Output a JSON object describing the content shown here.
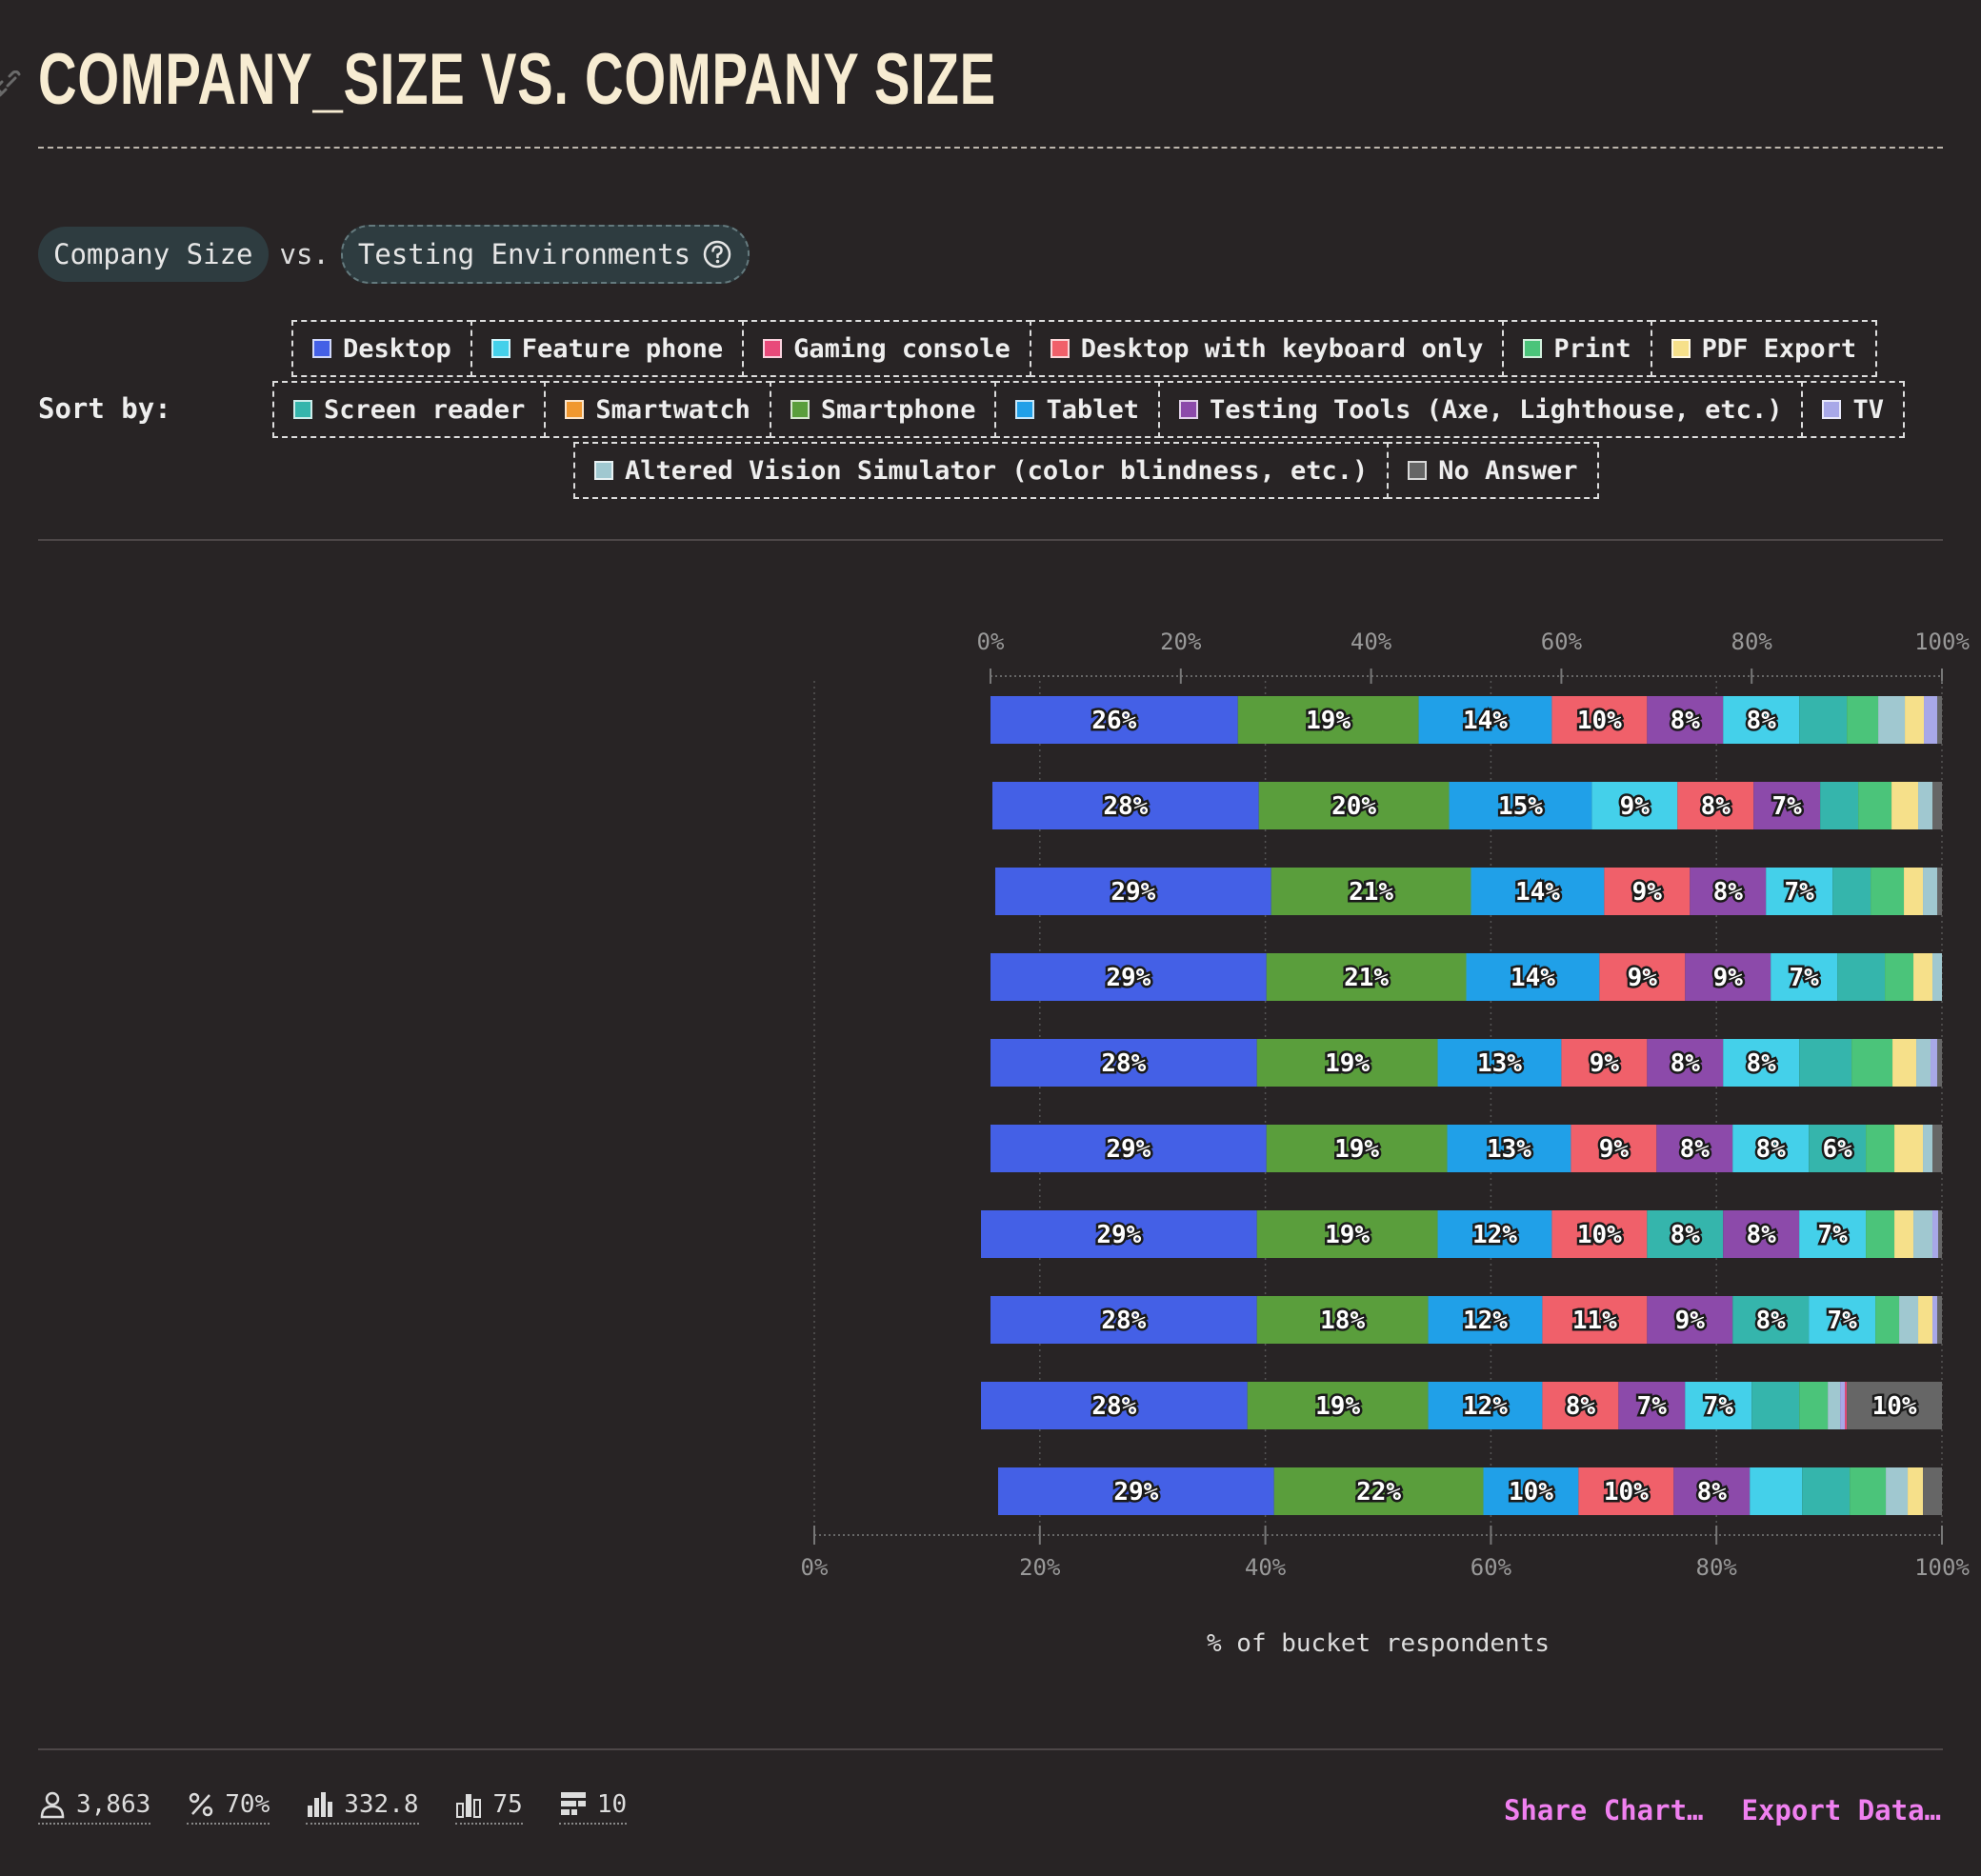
{
  "title": "COMPANY_SIZE VS. COMPANY SIZE",
  "selectors": {
    "left": "Company Size",
    "vs": "vs.",
    "right": "Testing Environments"
  },
  "sort_label": "Sort by:",
  "legend_rows": [
    [
      {
        "label": "Desktop",
        "color": "#4460e6"
      },
      {
        "label": "Feature phone",
        "color": "#44d0ea"
      },
      {
        "label": "Gaming console",
        "color": "#e84a7a"
      },
      {
        "label": "Desktop with keyboard only",
        "color": "#f0606a"
      },
      {
        "label": "Print",
        "color": "#4bc47a"
      },
      {
        "label": "PDF Export",
        "color": "#f6e08a"
      }
    ],
    [
      {
        "label": "Screen reader",
        "color": "#35b5ac"
      },
      {
        "label": "Smartwatch",
        "color": "#f09830"
      },
      {
        "label": "Smartphone",
        "color": "#5a9e3c"
      },
      {
        "label": "Tablet",
        "color": "#20a0e8"
      },
      {
        "label": "Testing Tools (Axe, Lighthouse, etc.)",
        "color": "#8c4aaa"
      },
      {
        "label": "TV",
        "color": "#a8a8e8"
      }
    ],
    [
      {
        "label": "Altered Vision Simulator (color blindness, etc.)",
        "color": "#a0c8d0"
      },
      {
        "label": "No Answer",
        "color": "#666666"
      }
    ]
  ],
  "footer": {
    "stats": [
      {
        "icon": "user-icon",
        "value": "3,863"
      },
      {
        "icon": "percent-icon",
        "value": "70%"
      },
      {
        "icon": "bar-chart-icon",
        "value": "332.8"
      },
      {
        "icon": "bar-chart-outline-icon",
        "value": "75"
      },
      {
        "icon": "buckets-icon",
        "value": "10"
      }
    ],
    "share": "Share Chart…",
    "export": "Export Data…"
  },
  "chart_data": {
    "type": "bar",
    "orientation": "horizontal",
    "stacked": true,
    "xlabel": "% of bucket respondents",
    "xlim": [
      0,
      100
    ],
    "ticks": [
      "0%",
      "20%",
      "40%",
      "60%",
      "80%",
      "100%"
    ],
    "rows": [
      {
        "segments": [
          {
            "series": "Desktop",
            "value": 26,
            "label": "26%"
          },
          {
            "series": "Smartphone",
            "value": 19,
            "label": "19%"
          },
          {
            "series": "Tablet",
            "value": 14,
            "label": "14%"
          },
          {
            "series": "Desktop with keyboard only",
            "value": 10,
            "label": "10%"
          },
          {
            "series": "Testing Tools (Axe, Lighthouse, etc.)",
            "value": 8,
            "label": "8%"
          },
          {
            "series": "Feature phone",
            "value": 8,
            "label": "8%"
          },
          {
            "series": "Screen reader",
            "value": 5,
            "label": ""
          },
          {
            "series": "Print",
            "value": 3.3,
            "label": ""
          },
          {
            "series": "Altered Vision Simulator (color blindness, etc.)",
            "value": 2.8,
            "label": ""
          },
          {
            "series": "PDF Export",
            "value": 2,
            "label": ""
          },
          {
            "series": "TV",
            "value": 1.4,
            "label": ""
          },
          {
            "series": "No Answer",
            "value": 0.5,
            "label": ""
          }
        ]
      },
      {
        "segments": [
          {
            "series": "Desktop",
            "value": 28,
            "label": "28%"
          },
          {
            "series": "Smartphone",
            "value": 20,
            "label": "20%"
          },
          {
            "series": "Tablet",
            "value": 15,
            "label": "15%"
          },
          {
            "series": "Feature phone",
            "value": 9,
            "label": "9%"
          },
          {
            "series": "Desktop with keyboard only",
            "value": 8,
            "label": "8%"
          },
          {
            "series": "Testing Tools (Axe, Lighthouse, etc.)",
            "value": 7,
            "label": "7%"
          },
          {
            "series": "Screen reader",
            "value": 4,
            "label": ""
          },
          {
            "series": "Print",
            "value": 3.5,
            "label": ""
          },
          {
            "series": "PDF Export",
            "value": 2.8,
            "label": ""
          },
          {
            "series": "Altered Vision Simulator (color blindness, etc.)",
            "value": 1.5,
            "label": ""
          },
          {
            "series": "No Answer",
            "value": 1,
            "label": ""
          }
        ]
      },
      {
        "segments": [
          {
            "series": "Desktop",
            "value": 29,
            "label": "29%"
          },
          {
            "series": "Smartphone",
            "value": 21,
            "label": "21%"
          },
          {
            "series": "Tablet",
            "value": 14,
            "label": "14%"
          },
          {
            "series": "Desktop with keyboard only",
            "value": 9,
            "label": "9%"
          },
          {
            "series": "Testing Tools (Axe, Lighthouse, etc.)",
            "value": 8,
            "label": "8%"
          },
          {
            "series": "Feature phone",
            "value": 7,
            "label": "7%"
          },
          {
            "series": "Screen reader",
            "value": 4,
            "label": ""
          },
          {
            "series": "Print",
            "value": 3.5,
            "label": ""
          },
          {
            "series": "PDF Export",
            "value": 2,
            "label": ""
          },
          {
            "series": "Altered Vision Simulator (color blindness, etc.)",
            "value": 1.5,
            "label": ""
          },
          {
            "series": "No Answer",
            "value": 0.5,
            "label": ""
          }
        ]
      },
      {
        "segments": [
          {
            "series": "Desktop",
            "value": 29,
            "label": "29%"
          },
          {
            "series": "Smartphone",
            "value": 21,
            "label": "21%"
          },
          {
            "series": "Tablet",
            "value": 14,
            "label": "14%"
          },
          {
            "series": "Desktop with keyboard only",
            "value": 9,
            "label": "9%"
          },
          {
            "series": "Testing Tools (Axe, Lighthouse, etc.)",
            "value": 9,
            "label": "9%"
          },
          {
            "series": "Feature phone",
            "value": 7,
            "label": "7%"
          },
          {
            "series": "Screen reader",
            "value": 5,
            "label": ""
          },
          {
            "series": "Print",
            "value": 3,
            "label": ""
          },
          {
            "series": "PDF Export",
            "value": 2,
            "label": ""
          },
          {
            "series": "Altered Vision Simulator (color blindness, etc.)",
            "value": 1,
            "label": ""
          }
        ]
      },
      {
        "segments": [
          {
            "series": "Desktop",
            "value": 28,
            "label": "28%"
          },
          {
            "series": "Smartphone",
            "value": 19,
            "label": "19%"
          },
          {
            "series": "Tablet",
            "value": 13,
            "label": "13%"
          },
          {
            "series": "Desktop with keyboard only",
            "value": 9,
            "label": "9%"
          },
          {
            "series": "Testing Tools (Axe, Lighthouse, etc.)",
            "value": 8,
            "label": "8%"
          },
          {
            "series": "Feature phone",
            "value": 8,
            "label": "8%"
          },
          {
            "series": "Screen reader",
            "value": 5.5,
            "label": ""
          },
          {
            "series": "Print",
            "value": 4.3,
            "label": ""
          },
          {
            "series": "PDF Export",
            "value": 2.5,
            "label": ""
          },
          {
            "series": "Altered Vision Simulator (color blindness, etc.)",
            "value": 1.5,
            "label": ""
          },
          {
            "series": "TV",
            "value": 0.7,
            "label": ""
          },
          {
            "series": "No Answer",
            "value": 0.5,
            "label": ""
          }
        ]
      },
      {
        "segments": [
          {
            "series": "Desktop",
            "value": 29,
            "label": "29%"
          },
          {
            "series": "Smartphone",
            "value": 19,
            "label": "19%"
          },
          {
            "series": "Tablet",
            "value": 13,
            "label": "13%"
          },
          {
            "series": "Desktop with keyboard only",
            "value": 9,
            "label": "9%"
          },
          {
            "series": "Testing Tools (Axe, Lighthouse, etc.)",
            "value": 8,
            "label": "8%"
          },
          {
            "series": "Feature phone",
            "value": 8,
            "label": "8%"
          },
          {
            "series": "Screen reader",
            "value": 6,
            "label": "6%"
          },
          {
            "series": "Print",
            "value": 3,
            "label": ""
          },
          {
            "series": "PDF Export",
            "value": 3,
            "label": ""
          },
          {
            "series": "Altered Vision Simulator (color blindness, etc.)",
            "value": 1,
            "label": ""
          },
          {
            "series": "No Answer",
            "value": 1,
            "label": ""
          }
        ]
      },
      {
        "segments": [
          {
            "series": "Desktop",
            "value": 29,
            "label": "29%"
          },
          {
            "series": "Smartphone",
            "value": 19,
            "label": "19%"
          },
          {
            "series": "Tablet",
            "value": 12,
            "label": "12%"
          },
          {
            "series": "Desktop with keyboard only",
            "value": 10,
            "label": "10%"
          },
          {
            "series": "Screen reader",
            "value": 8,
            "label": "8%"
          },
          {
            "series": "Testing Tools (Axe, Lighthouse, etc.)",
            "value": 8,
            "label": "8%"
          },
          {
            "series": "Feature phone",
            "value": 7,
            "label": "7%"
          },
          {
            "series": "Print",
            "value": 3,
            "label": ""
          },
          {
            "series": "PDF Export",
            "value": 2,
            "label": ""
          },
          {
            "series": "Altered Vision Simulator (color blindness, etc.)",
            "value": 2,
            "label": ""
          },
          {
            "series": "TV",
            "value": 0.6,
            "label": ""
          },
          {
            "series": "No Answer",
            "value": 0.4,
            "label": ""
          }
        ]
      },
      {
        "segments": [
          {
            "series": "Desktop",
            "value": 28,
            "label": "28%"
          },
          {
            "series": "Smartphone",
            "value": 18,
            "label": "18%"
          },
          {
            "series": "Tablet",
            "value": 12,
            "label": "12%"
          },
          {
            "series": "Desktop with keyboard only",
            "value": 11,
            "label": "11%"
          },
          {
            "series": "Testing Tools (Axe, Lighthouse, etc.)",
            "value": 9,
            "label": "9%"
          },
          {
            "series": "Screen reader",
            "value": 8,
            "label": "8%"
          },
          {
            "series": "Feature phone",
            "value": 7,
            "label": "7%"
          },
          {
            "series": "Print",
            "value": 2.5,
            "label": ""
          },
          {
            "series": "Altered Vision Simulator (color blindness, etc.)",
            "value": 2,
            "label": ""
          },
          {
            "series": "PDF Export",
            "value": 1.5,
            "label": ""
          },
          {
            "series": "TV",
            "value": 0.5,
            "label": ""
          },
          {
            "series": "No Answer",
            "value": 0.5,
            "label": ""
          }
        ]
      },
      {
        "segments": [
          {
            "series": "Desktop",
            "value": 28,
            "label": "28%"
          },
          {
            "series": "Smartphone",
            "value": 19,
            "label": "19%"
          },
          {
            "series": "Tablet",
            "value": 12,
            "label": "12%"
          },
          {
            "series": "Desktop with keyboard only",
            "value": 8,
            "label": "8%"
          },
          {
            "series": "Testing Tools (Axe, Lighthouse, etc.)",
            "value": 7,
            "label": "7%"
          },
          {
            "series": "Feature phone",
            "value": 7,
            "label": "7%"
          },
          {
            "series": "Screen reader",
            "value": 5,
            "label": ""
          },
          {
            "series": "Print",
            "value": 3,
            "label": ""
          },
          {
            "series": "Altered Vision Simulator (color blindness, etc.)",
            "value": 1.3,
            "label": ""
          },
          {
            "series": "TV",
            "value": 0.5,
            "label": ""
          },
          {
            "series": "Gaming console",
            "value": 0.2,
            "label": ""
          },
          {
            "series": "No Answer",
            "value": 10,
            "label": "10%"
          }
        ]
      },
      {
        "segments": [
          {
            "series": "Desktop",
            "value": 29,
            "label": "29%"
          },
          {
            "series": "Smartphone",
            "value": 22,
            "label": "22%"
          },
          {
            "series": "Tablet",
            "value": 10,
            "label": "10%"
          },
          {
            "series": "Desktop with keyboard only",
            "value": 10,
            "label": "10%"
          },
          {
            "series": "Testing Tools (Axe, Lighthouse, etc.)",
            "value": 8,
            "label": "8%"
          },
          {
            "series": "Feature phone",
            "value": 5.5,
            "label": ""
          },
          {
            "series": "Screen reader",
            "value": 5,
            "label": ""
          },
          {
            "series": "Print",
            "value": 3.8,
            "label": ""
          },
          {
            "series": "Altered Vision Simulator (color blindness, etc.)",
            "value": 2.3,
            "label": ""
          },
          {
            "series": "PDF Export",
            "value": 1.6,
            "label": ""
          },
          {
            "series": "No Answer",
            "value": 2,
            "label": ""
          }
        ]
      }
    ]
  }
}
